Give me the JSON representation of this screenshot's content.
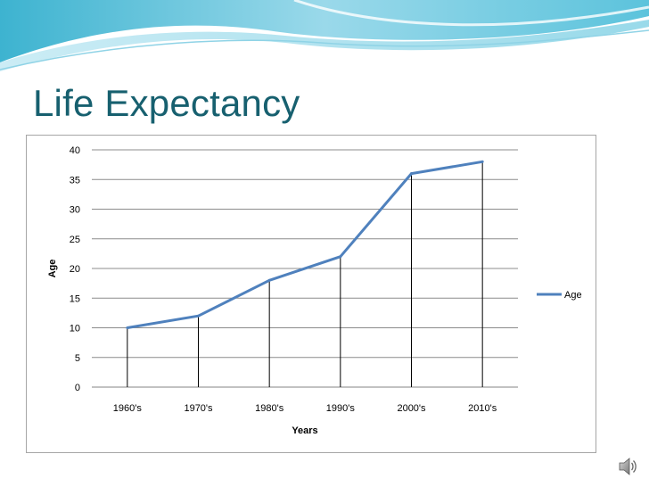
{
  "slide": {
    "title": "Life Expectancy"
  },
  "icons": {
    "speaker": "speaker-icon"
  },
  "colors": {
    "title": "#17606f",
    "series": "#4f81bd"
  },
  "chart_data": {
    "type": "line",
    "categories": [
      "1960's",
      "1970's",
      "1980's",
      "1990's",
      "2000's",
      "2010's"
    ],
    "series": [
      {
        "name": "Age",
        "values": [
          10,
          12,
          18,
          22,
          36,
          38
        ]
      }
    ],
    "xlabel": "Years",
    "ylabel": "Age",
    "ylim": [
      0,
      40
    ],
    "yticks": [
      0,
      5,
      10,
      15,
      20,
      25,
      30,
      35,
      40
    ],
    "grid": true,
    "drop_lines": true,
    "legend": "right"
  }
}
